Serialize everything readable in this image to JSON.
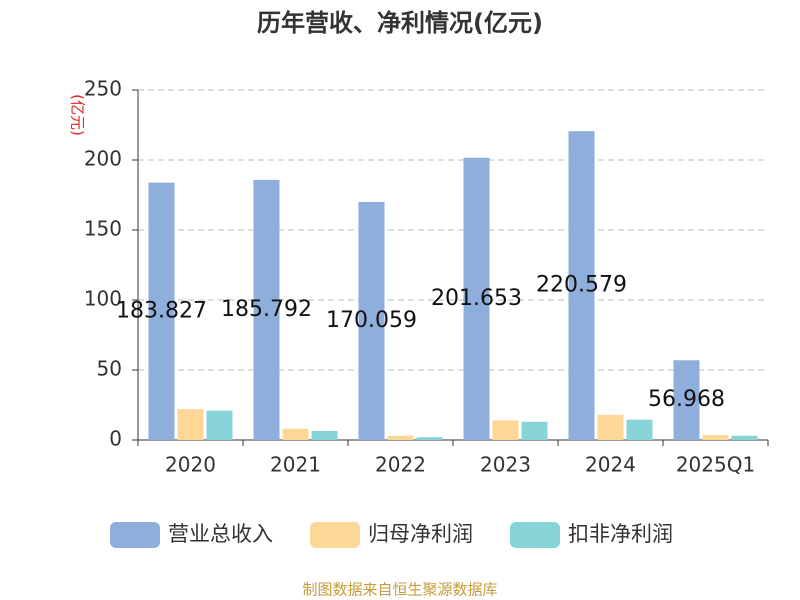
{
  "chart_data": {
    "type": "bar",
    "title": "历年营收、净利情况(亿元)",
    "y_label": "(亿元)",
    "categories": [
      "2020",
      "2021",
      "2022",
      "2023",
      "2024",
      "2025Q1"
    ],
    "series": [
      {
        "name": "营业总收入",
        "color": "#8eaedb",
        "values": [
          183.827,
          185.792,
          170.059,
          201.653,
          220.579,
          56.968
        ],
        "show_labels": true
      },
      {
        "name": "归母净利润",
        "color": "#fdd795",
        "values": [
          22,
          8,
          3,
          14,
          18,
          3.5
        ],
        "show_labels": false
      },
      {
        "name": "扣非净利润",
        "color": "#86d4d8",
        "values": [
          21,
          6.5,
          2,
          13,
          14.5,
          3
        ],
        "show_labels": false
      }
    ],
    "ylim": [
      0,
      250
    ],
    "yticks": [
      0,
      50,
      100,
      150,
      200,
      250
    ],
    "grid": true,
    "legend": "bottom",
    "source": "制图数据来自恒生聚源数据库"
  }
}
